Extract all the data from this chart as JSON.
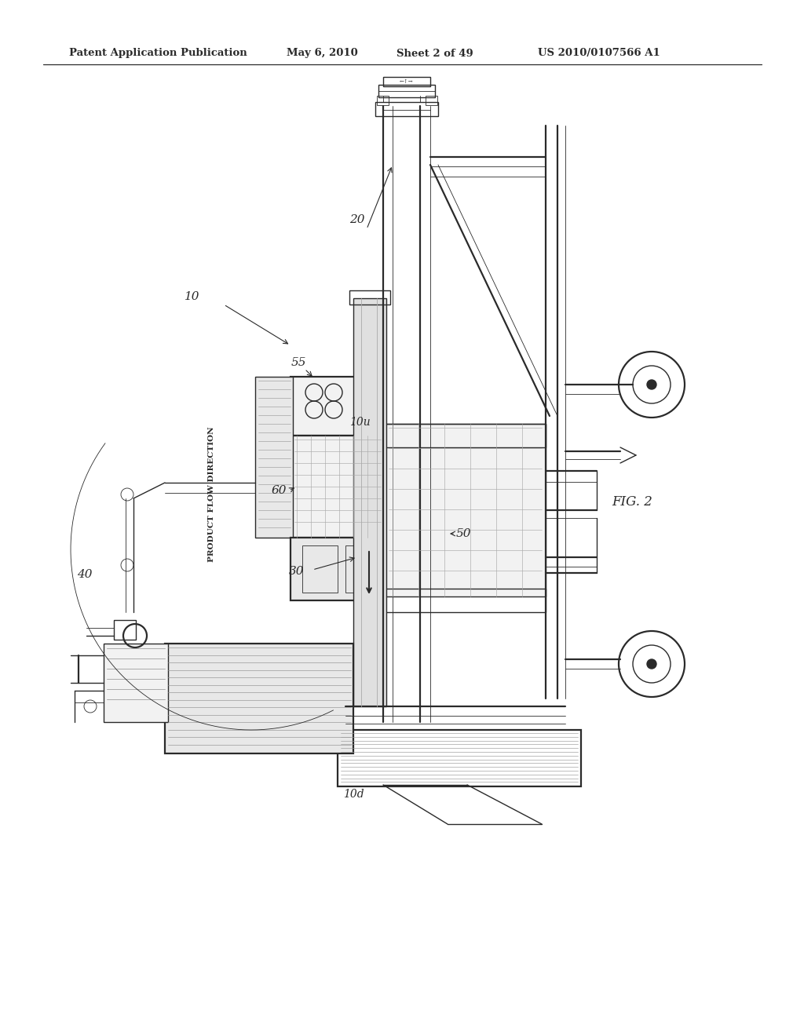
{
  "bg": "#ffffff",
  "header1": "Patent Application Publication",
  "header2": "May 6, 2010",
  "header3": "Sheet 2 of 49",
  "header4": "US 2010/0107566 A1",
  "fig_label": "FIG. 2",
  "product_flow": "PRODUCT FLOW DIRECTION",
  "line_color": "#2a2a2a",
  "gray1": "#cccccc",
  "gray2": "#e8e8e8",
  "gray3": "#f2f2f2"
}
